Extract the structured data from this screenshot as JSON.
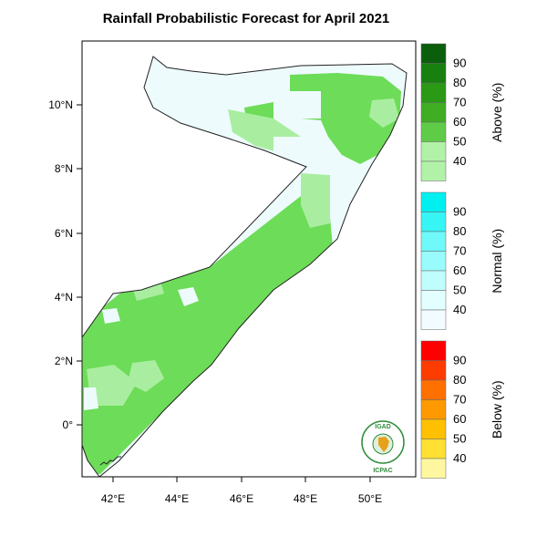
{
  "title": "Rainfall Probabilistic Forecast for April 2021",
  "lat_ticks": [
    "10°N",
    "8°N",
    "6°N",
    "4°N",
    "2°N",
    "0°"
  ],
  "lon_ticks": [
    "42°E",
    "44°E",
    "46°E",
    "48°E",
    "50°E"
  ],
  "legend": [
    {
      "title": "Above (%)",
      "values": [
        "90",
        "80",
        "70",
        "60",
        "50",
        "40"
      ],
      "colors": [
        "#0b5e0b",
        "#17800f",
        "#2a9a16",
        "#3fae22",
        "#5fcc48",
        "#b2f2a8",
        "#b2f2a8"
      ]
    },
    {
      "title": "Normal (%)",
      "values": [
        "90",
        "80",
        "70",
        "60",
        "50",
        "40"
      ],
      "colors": [
        "#00f0f0",
        "#38f5f5",
        "#6ff9f9",
        "#99fbfb",
        "#c0fdfd",
        "#e2fefe",
        "#f2fbff"
      ]
    },
    {
      "title": "Below (%)",
      "values": [
        "90",
        "80",
        "70",
        "60",
        "50",
        "40"
      ],
      "colors": [
        "#ff0000",
        "#ff3c00",
        "#ff7000",
        "#ff9900",
        "#ffc000",
        "#ffe033",
        "#fff7a0"
      ]
    }
  ],
  "map_colors": {
    "above_50": "#6ddc58",
    "above_40": "#a9eea0",
    "normal_40": "#eefbfd"
  },
  "logo": {
    "top": "IGAD",
    "bottom": "ICPAC"
  }
}
